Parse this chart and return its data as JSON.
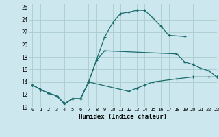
{
  "xlabel": "Humidex (Indice chaleur)",
  "bg_color": "#cce8ee",
  "grid_color": "#aacccc",
  "line_color": "#1a6b6b",
  "xlim": [
    -0.5,
    23
  ],
  "ylim": [
    10,
    26.5
  ],
  "xticks": [
    0,
    1,
    2,
    3,
    4,
    5,
    6,
    7,
    8,
    9,
    10,
    11,
    12,
    13,
    14,
    15,
    16,
    17,
    18,
    19,
    20,
    21,
    22,
    23
  ],
  "yticks": [
    10,
    12,
    14,
    16,
    18,
    20,
    22,
    24,
    26
  ],
  "series": [
    {
      "x": [
        0,
        1,
        2,
        3,
        4,
        5,
        6,
        7,
        9,
        10,
        11,
        12,
        13,
        14,
        15,
        16,
        17,
        19
      ],
      "y": [
        13.5,
        12.8,
        12.2,
        11.8,
        10.5,
        11.3,
        11.3,
        14.0,
        21.2,
        23.5,
        25.0,
        25.2,
        25.5,
        25.5,
        24.3,
        23.0,
        21.5,
        21.3
      ]
    },
    {
      "x": [
        0,
        1,
        2,
        3,
        4,
        5,
        6,
        7,
        8,
        9,
        18,
        19,
        20,
        21,
        22,
        23
      ],
      "y": [
        13.5,
        12.8,
        12.2,
        11.8,
        10.5,
        11.3,
        11.3,
        14.0,
        17.5,
        19.0,
        18.5,
        17.2,
        16.8,
        16.2,
        15.8,
        14.8
      ]
    },
    {
      "x": [
        0,
        1,
        2,
        3,
        4,
        5,
        6,
        7,
        12,
        13,
        14,
        15,
        18,
        20,
        22,
        23
      ],
      "y": [
        13.5,
        12.8,
        12.2,
        11.8,
        10.5,
        11.3,
        11.3,
        14.0,
        12.5,
        13.0,
        13.5,
        14.0,
        14.5,
        14.8,
        14.8,
        14.8
      ]
    }
  ]
}
